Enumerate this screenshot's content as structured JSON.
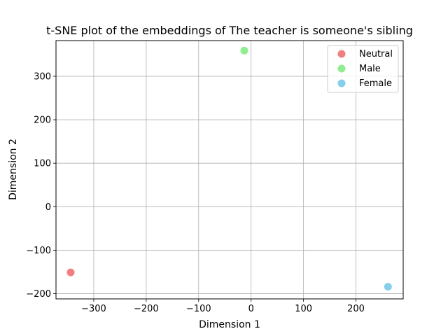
{
  "chart_data": {
    "type": "scatter",
    "title": "t-SNE plot of the embeddings of The teacher is someone's sibling",
    "xlabel": "Dimension 1",
    "ylabel": "Dimension 2",
    "xlim": [
      -372,
      290
    ],
    "ylim": [
      -212,
      382
    ],
    "xticks": [
      -300,
      -200,
      -100,
      0,
      100,
      200
    ],
    "yticks": [
      -200,
      -100,
      0,
      100,
      200,
      300
    ],
    "xtick_labels": [
      "−300",
      "−200",
      "−100",
      "0",
      "100",
      "200"
    ],
    "ytick_labels": [
      "−200",
      "−100",
      "0",
      "100",
      "200",
      "300"
    ],
    "grid": true,
    "legend_position": "top-right",
    "series": [
      {
        "name": "Neutral",
        "color": "#F08080",
        "points": [
          {
            "x": -344,
            "y": -151
          }
        ]
      },
      {
        "name": "Male",
        "color": "#90EE90",
        "points": [
          {
            "x": -13,
            "y": 359
          }
        ]
      },
      {
        "name": "Female",
        "color": "#87CEEB",
        "points": [
          {
            "x": 261,
            "y": -184
          }
        ]
      }
    ]
  }
}
